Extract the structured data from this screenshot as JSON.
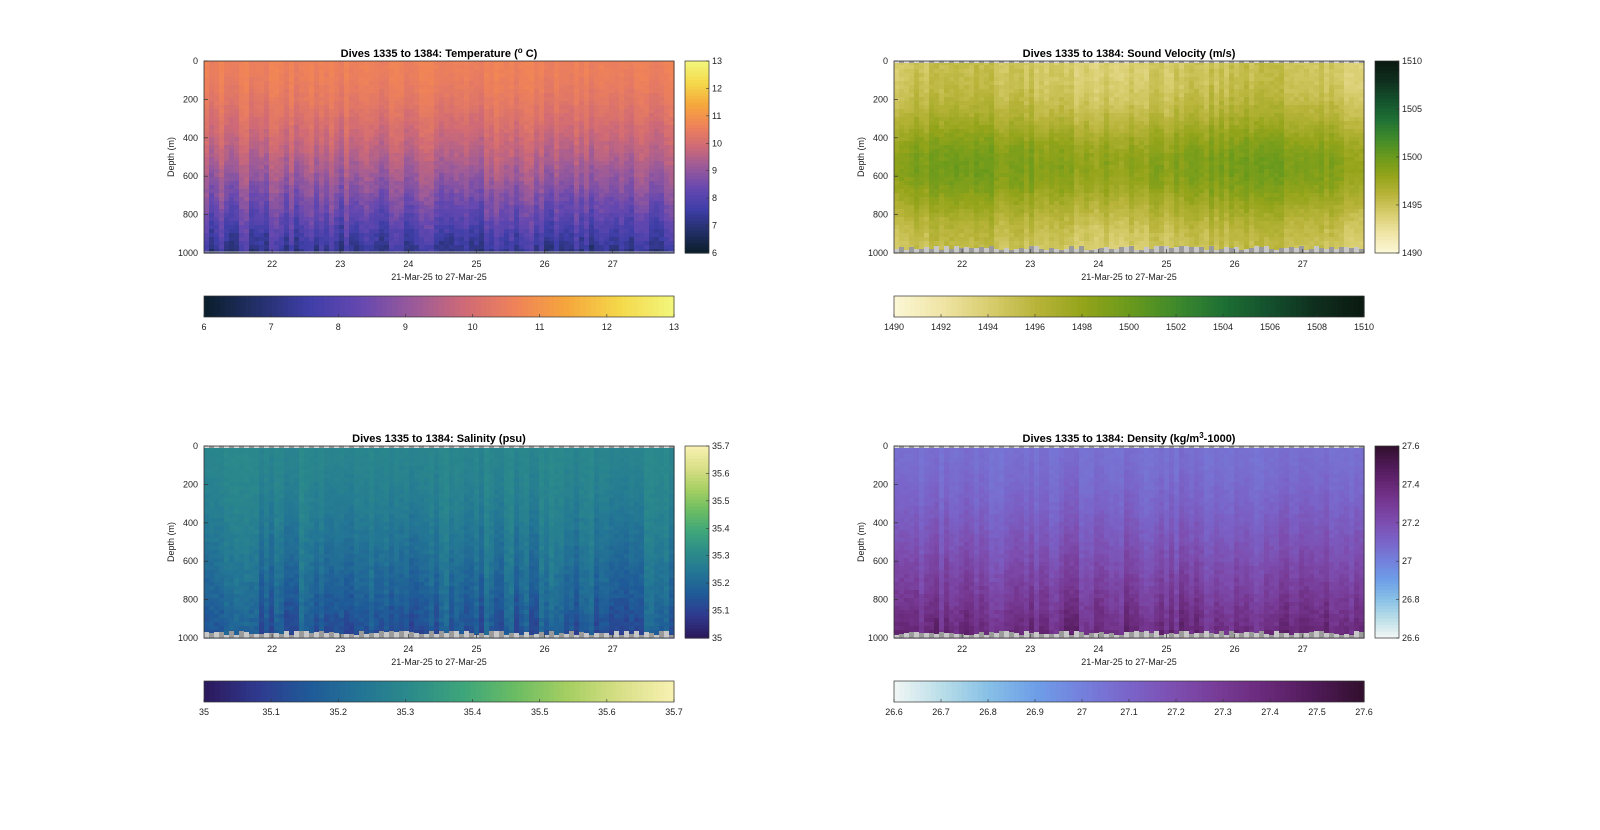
{
  "charts": [
    {
      "type": "heatmap",
      "title": "Dives 1335 to 1384: Temperature (",
      "title_sup": "o",
      "title_end": " C)",
      "xlabel": "21-Mar-25 to 27-Mar-25",
      "ylabel": "Depth (m)",
      "xlim": [
        21.0,
        27.9
      ],
      "ylim": [
        0,
        1000
      ],
      "xticks": [
        22,
        23,
        24,
        25,
        26,
        27
      ],
      "yticks": [
        0,
        200,
        400,
        600,
        800,
        1000
      ],
      "colorbar_ticks_v": [
        6,
        7,
        8,
        9,
        10,
        11,
        12,
        13
      ],
      "colorbar_ticks_h": [
        6,
        7,
        8,
        9,
        10,
        11,
        12,
        13
      ],
      "clim": [
        6,
        13
      ],
      "colormap": [
        "#0b1f2e",
        "#24306b",
        "#3f3ea8",
        "#6648b0",
        "#9a5a9a",
        "#cf6a76",
        "#f08358",
        "#f5a83c",
        "#f5d84a",
        "#f2f57a"
      ],
      "profile": {
        "surface": 10.6,
        "deep": 7.3,
        "bottom_mask": false
      }
    },
    {
      "type": "heatmap",
      "title": "Dives 1335 to 1384: Sound Velocity (m/s)",
      "title_sup": "",
      "title_end": "",
      "xlabel": "21-Mar-25 to 27-Mar-25",
      "ylabel": "Depth (m)",
      "xlim": [
        21.0,
        27.9
      ],
      "ylim": [
        0,
        1000
      ],
      "xticks": [
        22,
        23,
        24,
        25,
        26,
        27
      ],
      "yticks": [
        0,
        200,
        400,
        600,
        800,
        1000
      ],
      "colorbar_ticks_v": [
        1490,
        1495,
        1500,
        1505,
        1510
      ],
      "colorbar_ticks_h": [
        1490,
        1492,
        1494,
        1496,
        1498,
        1500,
        1502,
        1504,
        1506,
        1508,
        1510
      ],
      "clim": [
        1490,
        1510
      ],
      "colormap": [
        "#fbf6d3",
        "#efe4a4",
        "#d8cd6e",
        "#b8b43a",
        "#94a41a",
        "#6a9a1c",
        "#3f8a2b",
        "#1e7034",
        "#14512d",
        "#0f2f1e",
        "#0b1a12"
      ],
      "profile": {
        "surface": 1494.3,
        "deep": 1494.2,
        "mid": 1498.8,
        "bottom_mask": true
      }
    },
    {
      "type": "heatmap",
      "title": "Dives 1335 to 1384: Salinity (psu)",
      "title_sup": "",
      "title_end": "",
      "xlabel": "21-Mar-25 to 27-Mar-25",
      "ylabel": "Depth (m)",
      "xlim": [
        21.0,
        27.9
      ],
      "ylim": [
        0,
        1000
      ],
      "xticks": [
        22,
        23,
        24,
        25,
        26,
        27
      ],
      "yticks": [
        0,
        200,
        400,
        600,
        800,
        1000
      ],
      "colorbar_ticks_v": [
        35,
        35.1,
        35.2,
        35.3,
        35.4,
        35.5,
        35.6,
        35.7
      ],
      "colorbar_ticks_h": [
        35,
        35.1,
        35.2,
        35.3,
        35.4,
        35.5,
        35.6,
        35.7
      ],
      "clim": [
        35,
        35.7
      ],
      "colormap": [
        "#2c1a5e",
        "#2f3a8f",
        "#1f5a98",
        "#237595",
        "#2c8c8a",
        "#3ea67a",
        "#6cbd63",
        "#a6cf62",
        "#d8df86",
        "#f7f1b0"
      ],
      "profile": {
        "surface": 35.29,
        "deep": 35.14,
        "bottom_mask": true
      }
    },
    {
      "type": "heatmap",
      "title": "Dives 1335 to 1384: Density (kg/m",
      "title_sup": "3",
      "title_end": "-1000)",
      "xlabel": "21-Mar-25 to 27-Mar-25",
      "ylabel": "Depth (m)",
      "xlim": [
        21.0,
        27.9
      ],
      "ylim": [
        0,
        1000
      ],
      "xticks": [
        22,
        23,
        24,
        25,
        26,
        27
      ],
      "yticks": [
        0,
        200,
        400,
        600,
        800,
        1000
      ],
      "colorbar_ticks_v": [
        26.6,
        26.8,
        27,
        27.2,
        27.4,
        27.6
      ],
      "colorbar_ticks_h": [
        26.6,
        26.7,
        26.8,
        26.9,
        27,
        27.1,
        27.2,
        27.3,
        27.4,
        27.5,
        27.6
      ],
      "clim": [
        26.6,
        27.6
      ],
      "colormap": [
        "#eef5f4",
        "#b8dde8",
        "#86bfe6",
        "#6e9ee8",
        "#7480dc",
        "#7a64c9",
        "#7d4eb0",
        "#773a95",
        "#682878",
        "#4f1a58",
        "#33102f"
      ],
      "profile": {
        "surface": 27.06,
        "deep": 27.4,
        "bottom_mask": true
      }
    }
  ]
}
